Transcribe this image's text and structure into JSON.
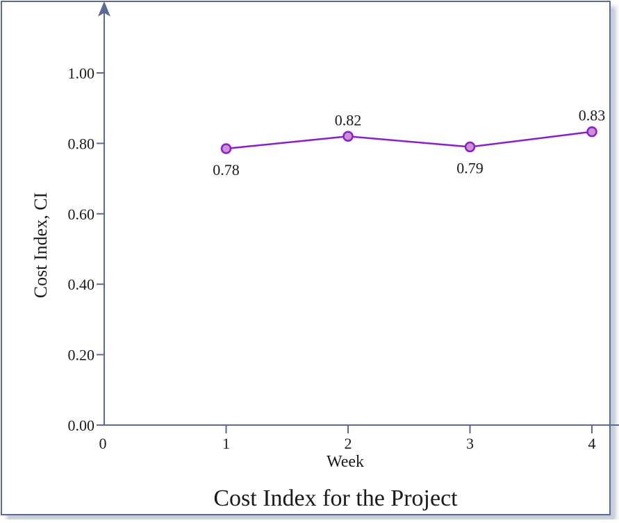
{
  "chart_data": {
    "type": "line",
    "title": "Cost Index for the Project",
    "xlabel": "Week",
    "ylabel": "Cost Index, CI",
    "x": [
      1,
      2,
      3,
      4
    ],
    "x_ticks": [
      0,
      1,
      2,
      3,
      4
    ],
    "x_tick_labels": [
      "0",
      "1",
      "2",
      "3",
      "4"
    ],
    "xlim": [
      0,
      4.5
    ],
    "y_ticks": [
      0,
      0.2,
      0.4,
      0.6,
      0.8,
      1.0
    ],
    "y_tick_labels": [
      "0.00",
      "0.20",
      "0.40",
      "0.60",
      "0.80",
      "1.00"
    ],
    "ylim": [
      0,
      1.18
    ],
    "series": [
      {
        "values": [
          0.785,
          0.82,
          0.79,
          0.833
        ],
        "labels": [
          "0.78",
          "0.82",
          "0.79",
          "0.83"
        ],
        "label_positions": [
          "below",
          "above",
          "below",
          "above"
        ],
        "color": "#8a1fc9",
        "marker_fill": "#cf8fd6"
      }
    ],
    "grid": false,
    "legend": "none",
    "axis_color": "#5a6a94",
    "frame_color": "#5a6a94"
  }
}
